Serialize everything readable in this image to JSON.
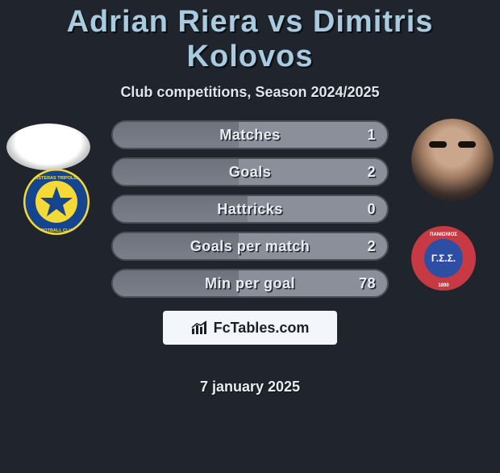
{
  "title": "Adrian Riera vs Dimitris Kolovos",
  "subtitle": "Club competitions, Season 2024/2025",
  "date": "7 january 2025",
  "branding": {
    "label": "FcTables.com"
  },
  "colors": {
    "page_bg": "#20252d",
    "title": "#a8cbe0",
    "text": "#e9edf3",
    "row_border": "#4a4f59",
    "row_bg": "#8a8f99",
    "fill_bg": "#747984",
    "pill_bg": "#f3f6fb"
  },
  "player_left": {
    "name": "Adrian Riera",
    "club": "Asteras Tripolis",
    "club_colors": {
      "outer": "#16458f",
      "inner": "#f5d936"
    }
  },
  "player_right": {
    "name": "Dimitris Kolovos",
    "club": "Panionios",
    "club_colors": {
      "outer": "#c73a43",
      "inner": "#2d4fa3"
    }
  },
  "stats": [
    {
      "label": "Matches",
      "value": "1",
      "fill_pct": 46
    },
    {
      "label": "Goals",
      "value": "2",
      "fill_pct": 46
    },
    {
      "label": "Hattricks",
      "value": "0",
      "fill_pct": 49
    },
    {
      "label": "Goals per match",
      "value": "2",
      "fill_pct": 46
    },
    {
      "label": "Min per goal",
      "value": "78",
      "fill_pct": 46
    }
  ]
}
